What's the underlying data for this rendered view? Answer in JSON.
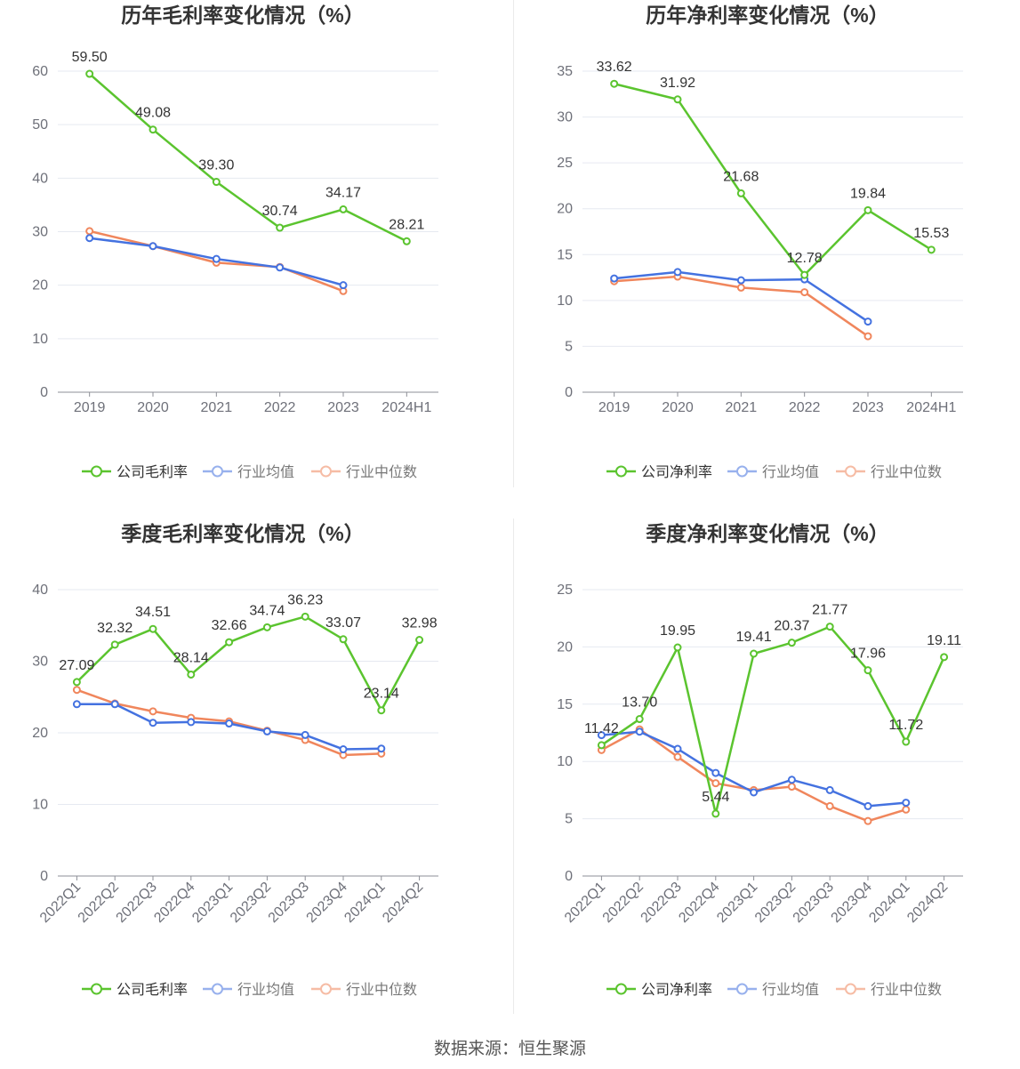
{
  "footer": {
    "source": "数据来源：恒生聚源"
  },
  "chart_data": [
    {
      "type": "line",
      "title": "历年毛利率变化情况（%）",
      "categories": [
        "2019",
        "2020",
        "2021",
        "2022",
        "2023",
        "2024H1"
      ],
      "ylim": [
        0,
        60
      ],
      "yticks": [
        0,
        10,
        20,
        30,
        40,
        50,
        60
      ],
      "grid": true,
      "legend": "bottom",
      "series": [
        {
          "name": "公司毛利率",
          "color": "#5bc42f",
          "values": [
            59.5,
            49.08,
            39.3,
            30.74,
            34.17,
            28.21
          ],
          "data_labels": true
        },
        {
          "name": "行业均值",
          "color": "#4472e0",
          "values": [
            28.8,
            27.3,
            24.9,
            23.3,
            20.0,
            null
          ]
        },
        {
          "name": "行业中位数",
          "color": "#f0865c",
          "values": [
            30.1,
            27.3,
            24.2,
            23.4,
            18.9,
            null
          ]
        }
      ]
    },
    {
      "type": "line",
      "title": "历年净利率变化情况（%）",
      "categories": [
        "2019",
        "2020",
        "2021",
        "2022",
        "2023",
        "2024H1"
      ],
      "ylim": [
        0,
        35
      ],
      "yticks": [
        0,
        5,
        10,
        15,
        20,
        25,
        30,
        35
      ],
      "grid": true,
      "legend": "bottom",
      "series": [
        {
          "name": "公司净利率",
          "color": "#5bc42f",
          "values": [
            33.62,
            31.92,
            21.68,
            12.78,
            19.84,
            15.53
          ],
          "data_labels": true
        },
        {
          "name": "行业均值",
          "color": "#4472e0",
          "values": [
            12.4,
            13.1,
            12.2,
            12.3,
            7.7,
            null
          ]
        },
        {
          "name": "行业中位数",
          "color": "#f0865c",
          "values": [
            12.1,
            12.6,
            11.4,
            10.9,
            6.1,
            null
          ]
        }
      ]
    },
    {
      "type": "line",
      "title": "季度毛利率变化情况（%）",
      "categories": [
        "2022Q1",
        "2022Q2",
        "2022Q3",
        "2022Q4",
        "2023Q1",
        "2023Q2",
        "2023Q3",
        "2023Q4",
        "2024Q1",
        "2024Q2"
      ],
      "ylim": [
        0,
        40
      ],
      "yticks": [
        0,
        10,
        20,
        30,
        40
      ],
      "grid": true,
      "legend": "bottom",
      "series": [
        {
          "name": "公司毛利率",
          "color": "#5bc42f",
          "values": [
            27.09,
            32.32,
            34.51,
            28.14,
            32.66,
            34.74,
            36.23,
            33.07,
            23.14,
            32.98
          ],
          "data_labels": true
        },
        {
          "name": "行业均值",
          "color": "#4472e0",
          "values": [
            24.0,
            24.0,
            21.4,
            21.5,
            21.3,
            20.2,
            19.7,
            17.7,
            17.8,
            null
          ]
        },
        {
          "name": "行业中位数",
          "color": "#f0865c",
          "values": [
            26.0,
            24.1,
            23.0,
            22.1,
            21.6,
            20.3,
            19.0,
            16.9,
            17.1,
            null
          ]
        }
      ]
    },
    {
      "type": "line",
      "title": "季度净利率变化情况（%）",
      "categories": [
        "2022Q1",
        "2022Q2",
        "2022Q3",
        "2022Q4",
        "2023Q1",
        "2023Q2",
        "2023Q3",
        "2023Q4",
        "2024Q1",
        "2024Q2"
      ],
      "ylim": [
        0,
        25
      ],
      "yticks": [
        0,
        5,
        10,
        15,
        20,
        25
      ],
      "grid": true,
      "legend": "bottom",
      "series": [
        {
          "name": "公司净利率",
          "color": "#5bc42f",
          "values": [
            11.42,
            13.7,
            19.95,
            5.44,
            19.41,
            20.37,
            21.77,
            17.96,
            11.72,
            19.11
          ],
          "data_labels": true
        },
        {
          "name": "行业均值",
          "color": "#4472e0",
          "values": [
            12.3,
            12.6,
            11.1,
            9.0,
            7.3,
            8.4,
            7.5,
            6.1,
            6.4,
            null
          ]
        },
        {
          "name": "行业中位数",
          "color": "#f0865c",
          "values": [
            11.0,
            12.8,
            10.4,
            8.1,
            7.5,
            7.8,
            6.1,
            4.8,
            5.8,
            null
          ]
        }
      ]
    }
  ]
}
